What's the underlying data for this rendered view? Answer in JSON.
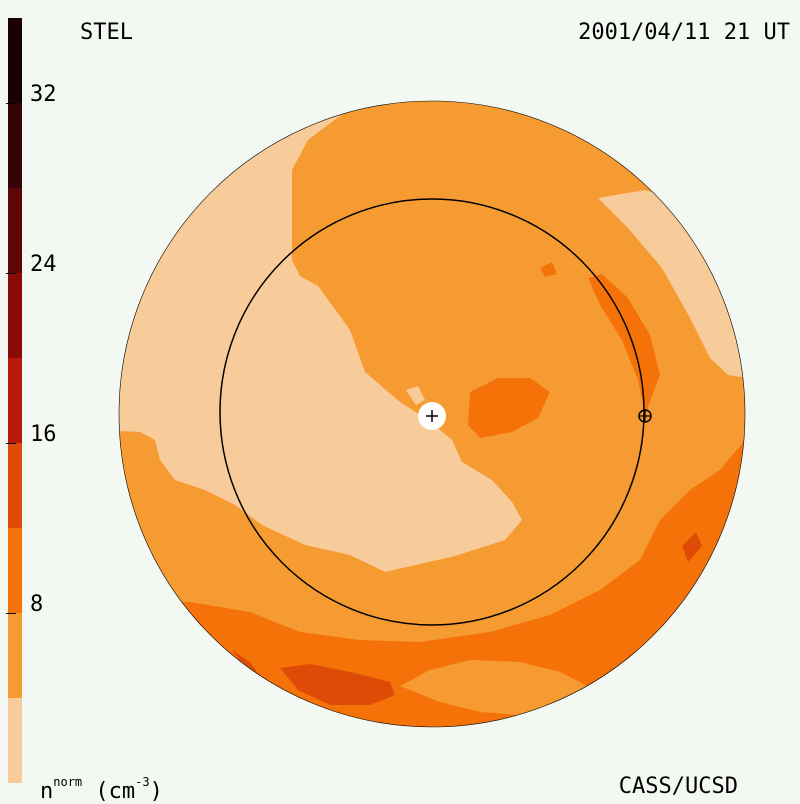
{
  "header": {
    "source": "STEL",
    "timestamp": "2001/04/11 21 UT"
  },
  "footer": {
    "credit": "CASS/UCSD"
  },
  "colorbar": {
    "quantity": "n",
    "quantity_sup": "norm",
    "unit_open": "(cm",
    "unit_exp": "-3",
    "unit_close": ")",
    "tick_labels": [
      "32",
      "24",
      "16",
      "8"
    ],
    "range": [
      0,
      36
    ],
    "levels": [
      {
        "min": 0,
        "max": 4,
        "color": "#f7cb9a"
      },
      {
        "min": 4,
        "max": 8,
        "color": "#f69b32"
      },
      {
        "min": 8,
        "max": 12,
        "color": "#f57209"
      },
      {
        "min": 12,
        "max": 16,
        "color": "#de4b07"
      },
      {
        "min": 16,
        "max": 20,
        "color": "#b81a0a"
      },
      {
        "min": 20,
        "max": 24,
        "color": "#8a0a06"
      },
      {
        "min": 24,
        "max": 28,
        "color": "#5e0505"
      },
      {
        "min": 28,
        "max": 32,
        "color": "#360406"
      },
      {
        "min": 32,
        "max": 36,
        "color": "#1a0204"
      }
    ]
  },
  "map": {
    "markers": [
      "sun-marker",
      "earth-marker"
    ],
    "reference_circle": "earth-orbit"
  }
}
